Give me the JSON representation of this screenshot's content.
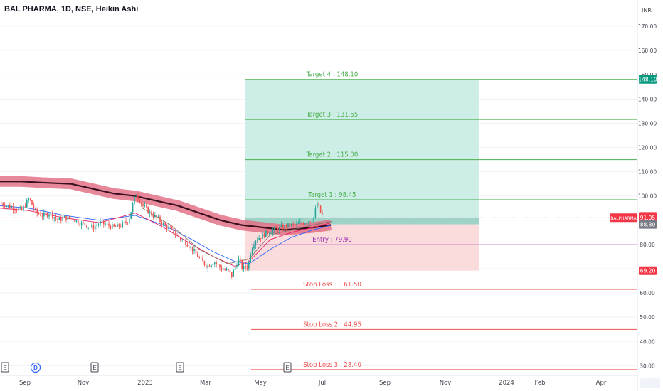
{
  "title": "BAL PHARMA, 1D, NSE, Heikin Ashi",
  "currency": "INR",
  "colors": {
    "up": "#26a69a",
    "down": "#ef5350",
    "target": "#4caf50",
    "stop": "#ef5350",
    "entry": "#9c27b0",
    "profit_zone": "#cdeee6",
    "loss_zone": "#fbdcdc",
    "band": "#e06a80",
    "band_core": "#3a1020"
  },
  "chart_data": {
    "type": "candlestick",
    "ylim": [
      26,
      175
    ],
    "y_ticks": [
      30,
      40,
      50,
      60,
      70,
      80,
      90,
      100,
      110,
      120,
      130,
      140,
      150,
      160,
      170
    ],
    "x_ticks": [
      {
        "label": "Sep",
        "x": "2022-09"
      },
      {
        "label": "Nov",
        "x": "2022-11"
      },
      {
        "label": "2023",
        "x": "2023-01"
      },
      {
        "label": "Mar",
        "x": "2023-03"
      },
      {
        "label": "May",
        "x": "2023-05"
      },
      {
        "label": "Jul",
        "x": "2023-07"
      },
      {
        "label": "Sep",
        "x": "2023-09"
      },
      {
        "label": "Nov",
        "x": "2023-11"
      },
      {
        "label": "2024",
        "x": "2024-01"
      },
      {
        "label": "Feb",
        "x": "2024-02"
      },
      {
        "label": "Apr",
        "x": "2024-04"
      }
    ],
    "levels": [
      {
        "name": "target-4",
        "label": "Target 4 : 148.10",
        "value": 148.1,
        "kind": "target"
      },
      {
        "name": "target-3",
        "label": "Target 3 : 131.55",
        "value": 131.55,
        "kind": "target"
      },
      {
        "name": "target-2",
        "label": "Target 2 : 115.00",
        "value": 115.0,
        "kind": "target"
      },
      {
        "name": "target-1",
        "label": "Target 1 : 98.45",
        "value": 98.45,
        "kind": "target"
      },
      {
        "name": "entry",
        "label": "Entry : 79.90",
        "value": 79.9,
        "kind": "entry"
      },
      {
        "name": "stop-loss-1",
        "label": "Stop Loss 1 : 61.50",
        "value": 61.5,
        "kind": "stop"
      },
      {
        "name": "stop-loss-2",
        "label": "Stop Loss 2 : 44.95",
        "value": 44.95,
        "kind": "stop"
      },
      {
        "name": "stop-loss-3",
        "label": "Stop Loss 3 : 28.40",
        "value": 28.4,
        "kind": "stop"
      }
    ],
    "position": {
      "target": 148.1,
      "entry_top": 88.3,
      "entry": 91.05,
      "stop": 69.2
    },
    "price_labels": [
      {
        "text": "148.10",
        "value": 148.1,
        "color": "#089981"
      },
      {
        "text": "91.60",
        "value": 91.6,
        "color": "#f23645"
      },
      {
        "text": "91.05",
        "value": 91.05,
        "color": "#f23645"
      },
      {
        "text": "88.30",
        "value": 88.3,
        "color": "#787b86"
      },
      {
        "text": "69.20",
        "value": 69.2,
        "color": "#f23645"
      }
    ],
    "symbol_label": {
      "text": "BALPHARMA",
      "value": 91.05
    },
    "price_path": [
      [
        0,
        97
      ],
      [
        10,
        96
      ],
      [
        20,
        95
      ],
      [
        30,
        94
      ],
      [
        40,
        99
      ],
      [
        50,
        93
      ],
      [
        60,
        92
      ],
      [
        70,
        93
      ],
      [
        80,
        90
      ],
      [
        90,
        91
      ],
      [
        100,
        91
      ],
      [
        110,
        89
      ],
      [
        120,
        88
      ],
      [
        130,
        87
      ],
      [
        140,
        89
      ],
      [
        150,
        88
      ],
      [
        160,
        87
      ],
      [
        170,
        88
      ],
      [
        180,
        90
      ],
      [
        190,
        101
      ],
      [
        200,
        96
      ],
      [
        210,
        93
      ],
      [
        220,
        91
      ],
      [
        230,
        88
      ],
      [
        240,
        86
      ],
      [
        250,
        83
      ],
      [
        260,
        81
      ],
      [
        270,
        78
      ],
      [
        280,
        74
      ],
      [
        290,
        71
      ],
      [
        300,
        73
      ],
      [
        310,
        70
      ],
      [
        320,
        69
      ],
      [
        325,
        67
      ],
      [
        330,
        71
      ],
      [
        335,
        74
      ],
      [
        340,
        70
      ],
      [
        348,
        71
      ],
      [
        352,
        78
      ],
      [
        358,
        82
      ],
      [
        365,
        83
      ],
      [
        375,
        85
      ],
      [
        385,
        86
      ],
      [
        395,
        87
      ],
      [
        405,
        88
      ],
      [
        415,
        88
      ],
      [
        425,
        89
      ],
      [
        435,
        90
      ],
      [
        440,
        91
      ],
      [
        445,
        97
      ],
      [
        450,
        93
      ],
      [
        455,
        91
      ]
    ],
    "band_path": [
      [
        0,
        106
      ],
      [
        30,
        106
      ],
      [
        60,
        105.5
      ],
      [
        100,
        105
      ],
      [
        130,
        103
      ],
      [
        160,
        101
      ],
      [
        190,
        100
      ],
      [
        220,
        98
      ],
      [
        250,
        96
      ],
      [
        280,
        93
      ],
      [
        310,
        90
      ],
      [
        340,
        88
      ],
      [
        370,
        87
      ],
      [
        400,
        86
      ],
      [
        420,
        86.5
      ],
      [
        440,
        87
      ],
      [
        465,
        88
      ]
    ],
    "ma_paths": [
      {
        "color": "#2962ff",
        "points": [
          [
            0,
            96
          ],
          [
            40,
            95
          ],
          [
            90,
            92
          ],
          [
            140,
            90
          ],
          [
            190,
            92
          ],
          [
            230,
            88
          ],
          [
            270,
            82
          ],
          [
            300,
            77
          ],
          [
            330,
            73
          ],
          [
            350,
            72
          ],
          [
            380,
            78
          ],
          [
            410,
            83
          ],
          [
            440,
            86
          ],
          [
            466,
            88
          ]
        ]
      },
      {
        "color": "#e91e63",
        "points": [
          [
            0,
            95
          ],
          [
            40,
            94
          ],
          [
            90,
            91
          ],
          [
            140,
            89
          ],
          [
            190,
            93
          ],
          [
            230,
            87
          ],
          [
            270,
            80
          ],
          [
            300,
            75
          ],
          [
            330,
            71
          ],
          [
            350,
            73
          ],
          [
            380,
            82
          ],
          [
            410,
            85
          ],
          [
            440,
            87
          ],
          [
            466,
            89
          ]
        ]
      },
      {
        "color": "#8d6e63",
        "points": [
          [
            200,
            95
          ],
          [
            240,
            88
          ],
          [
            280,
            78
          ],
          [
            320,
            72
          ],
          [
            350,
            74
          ],
          [
            380,
            84
          ],
          [
            410,
            86
          ],
          [
            440,
            88
          ],
          [
            466,
            89.5
          ]
        ]
      }
    ],
    "event_markers": [
      {
        "letter": "E",
        "x": 7
      },
      {
        "letter": "D",
        "x": 50
      },
      {
        "letter": "E",
        "x": 133
      },
      {
        "letter": "E",
        "x": 253
      },
      {
        "letter": "E",
        "x": 404
      }
    ]
  }
}
